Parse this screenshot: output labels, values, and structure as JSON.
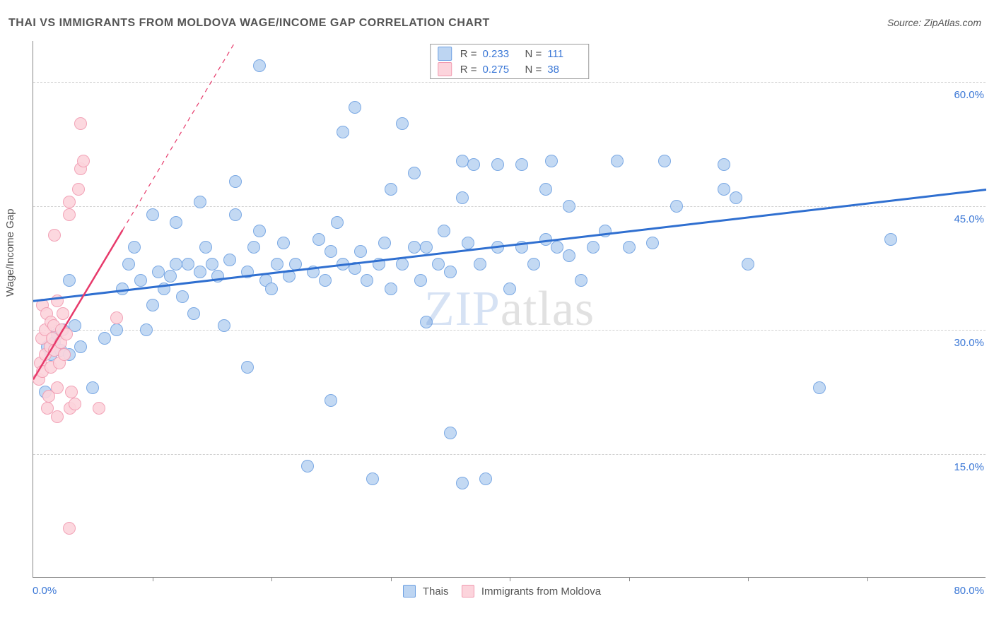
{
  "title": "THAI VS IMMIGRANTS FROM MOLDOVA WAGE/INCOME GAP CORRELATION CHART",
  "source_label": "Source:",
  "source_value": "ZipAtlas.com",
  "watermark": {
    "part1": "ZIP",
    "part2": "atlas"
  },
  "axes": {
    "ylabel": "Wage/Income Gap",
    "x_min_label": "0.0%",
    "x_max_label": "80.0%",
    "x_min": 0,
    "x_max": 80,
    "y_min": 0,
    "y_max": 65,
    "y_ticks": [
      15,
      30,
      45,
      60
    ],
    "y_tick_labels": [
      "15.0%",
      "30.0%",
      "45.0%",
      "60.0%"
    ],
    "x_ticks": [
      10,
      20,
      30,
      40,
      50,
      60,
      70
    ],
    "grid_color": "#d0d0d0",
    "tick_label_color": "#3a77d6"
  },
  "series": [
    {
      "name": "Thais",
      "marker": {
        "fill": "#bdd5f2",
        "stroke": "#6da0e2",
        "size": 18,
        "opacity": 0.9
      },
      "stats": {
        "R": "0.233",
        "N": "111"
      },
      "trend": {
        "x1": 0,
        "y1": 33.5,
        "x2": 80,
        "y2": 47,
        "color": "#2f6fd0",
        "width": 3,
        "dashed_beyond_x": null
      },
      "points": [
        [
          1.0,
          22.5
        ],
        [
          1.2,
          28.0
        ],
        [
          1.5,
          27.0
        ],
        [
          1.8,
          28.5
        ],
        [
          2.0,
          29.5
        ],
        [
          2.3,
          27.5
        ],
        [
          2.5,
          30.0
        ],
        [
          3.0,
          27.0
        ],
        [
          3.0,
          36.0
        ],
        [
          3.5,
          30.5
        ],
        [
          4.0,
          28.0
        ],
        [
          5.0,
          23.0
        ],
        [
          6.0,
          29.0
        ],
        [
          7.0,
          30.0
        ],
        [
          7.5,
          35.0
        ],
        [
          8.0,
          38.0
        ],
        [
          8.5,
          40.0
        ],
        [
          9.0,
          36.0
        ],
        [
          9.5,
          30.0
        ],
        [
          10.0,
          33.0
        ],
        [
          10.0,
          44.0
        ],
        [
          10.5,
          37.0
        ],
        [
          11.0,
          35.0
        ],
        [
          11.5,
          36.5
        ],
        [
          12.0,
          38.0
        ],
        [
          12.0,
          43.0
        ],
        [
          12.5,
          34.0
        ],
        [
          13.0,
          38.0
        ],
        [
          13.5,
          32.0
        ],
        [
          14.0,
          37.0
        ],
        [
          14.0,
          45.5
        ],
        [
          14.5,
          40.0
        ],
        [
          15.0,
          38.0
        ],
        [
          15.5,
          36.5
        ],
        [
          16.0,
          30.5
        ],
        [
          16.5,
          38.5
        ],
        [
          17.0,
          44.0
        ],
        [
          17.0,
          48.0
        ],
        [
          18.0,
          25.5
        ],
        [
          18.0,
          37.0
        ],
        [
          18.5,
          40.0
        ],
        [
          19.0,
          62.0
        ],
        [
          19.0,
          42.0
        ],
        [
          19.5,
          36.0
        ],
        [
          20.0,
          35.0
        ],
        [
          20.5,
          38.0
        ],
        [
          21.0,
          40.5
        ],
        [
          21.5,
          36.5
        ],
        [
          22.0,
          38.0
        ],
        [
          23.0,
          13.5
        ],
        [
          23.5,
          37.0
        ],
        [
          24.0,
          41.0
        ],
        [
          24.5,
          36.0
        ],
        [
          25.0,
          21.5
        ],
        [
          25.0,
          39.5
        ],
        [
          25.5,
          43.0
        ],
        [
          26.0,
          38.0
        ],
        [
          26.0,
          54.0
        ],
        [
          27.0,
          57.0
        ],
        [
          27.0,
          37.5
        ],
        [
          27.5,
          39.5
        ],
        [
          28.0,
          36.0
        ],
        [
          28.5,
          12.0
        ],
        [
          29.0,
          38.0
        ],
        [
          29.5,
          40.5
        ],
        [
          30.0,
          35.0
        ],
        [
          30.0,
          47.0
        ],
        [
          31.0,
          55.0
        ],
        [
          31.0,
          38.0
        ],
        [
          32.0,
          40.0
        ],
        [
          32.0,
          49.0
        ],
        [
          32.5,
          36.0
        ],
        [
          33.0,
          40.0
        ],
        [
          33.0,
          31.0
        ],
        [
          34.0,
          38.0
        ],
        [
          34.5,
          42.0
        ],
        [
          35.0,
          37.0
        ],
        [
          35.0,
          17.5
        ],
        [
          36.0,
          11.5
        ],
        [
          36.0,
          46.0
        ],
        [
          36.5,
          40.5
        ],
        [
          36.0,
          50.5
        ],
        [
          37.0,
          50.0
        ],
        [
          37.5,
          38.0
        ],
        [
          38.0,
          12.0
        ],
        [
          39.0,
          50.0
        ],
        [
          39.0,
          40.0
        ],
        [
          40.0,
          35.0
        ],
        [
          41.0,
          40.0
        ],
        [
          41.0,
          50.0
        ],
        [
          42.0,
          38.0
        ],
        [
          43.0,
          41.0
        ],
        [
          43.0,
          47.0
        ],
        [
          43.5,
          50.5
        ],
        [
          44.0,
          40.0
        ],
        [
          45.0,
          39.0
        ],
        [
          45.0,
          45.0
        ],
        [
          46.0,
          36.0
        ],
        [
          47.0,
          40.0
        ],
        [
          48.0,
          42.0
        ],
        [
          49.0,
          50.5
        ],
        [
          50.0,
          40.0
        ],
        [
          52.0,
          40.5
        ],
        [
          53.0,
          50.5
        ],
        [
          54.0,
          45.0
        ],
        [
          58.0,
          47.0
        ],
        [
          58.0,
          50.0
        ],
        [
          59.0,
          46.0
        ],
        [
          60.0,
          38.0
        ],
        [
          66.0,
          23.0
        ],
        [
          72.0,
          41.0
        ]
      ]
    },
    {
      "name": "Immigrants from Moldova",
      "marker": {
        "fill": "#fcd4dc",
        "stroke": "#f19ab0",
        "size": 18,
        "opacity": 0.9
      },
      "stats": {
        "R": "0.275",
        "N": "38"
      },
      "trend": {
        "x1": 0,
        "y1": 24,
        "x2": 17,
        "y2": 65,
        "color": "#e73a6b",
        "width": 2.5,
        "dashed_beyond_x": 7.5
      },
      "points": [
        [
          0.5,
          24.0
        ],
        [
          0.6,
          26.0
        ],
        [
          0.7,
          29.0
        ],
        [
          0.8,
          33.0
        ],
        [
          0.8,
          25.0
        ],
        [
          1.0,
          27.0
        ],
        [
          1.0,
          30.0
        ],
        [
          1.1,
          32.0
        ],
        [
          1.2,
          20.5
        ],
        [
          1.3,
          22.0
        ],
        [
          1.4,
          28.0
        ],
        [
          1.5,
          25.5
        ],
        [
          1.5,
          31.0
        ],
        [
          1.6,
          29.0
        ],
        [
          1.7,
          30.5
        ],
        [
          1.8,
          27.5
        ],
        [
          1.8,
          41.5
        ],
        [
          2.0,
          23.0
        ],
        [
          2.0,
          19.5
        ],
        [
          2.0,
          33.5
        ],
        [
          2.2,
          26.0
        ],
        [
          2.3,
          28.5
        ],
        [
          2.4,
          30.0
        ],
        [
          2.5,
          32.0
        ],
        [
          2.6,
          27.0
        ],
        [
          2.8,
          29.5
        ],
        [
          3.0,
          44.0
        ],
        [
          3.0,
          45.5
        ],
        [
          3.0,
          6.0
        ],
        [
          3.1,
          20.5
        ],
        [
          3.2,
          22.5
        ],
        [
          3.5,
          21.0
        ],
        [
          3.8,
          47.0
        ],
        [
          4.0,
          55.0
        ],
        [
          4.0,
          49.5
        ],
        [
          4.2,
          50.5
        ],
        [
          5.5,
          20.5
        ],
        [
          7.0,
          31.5
        ]
      ]
    }
  ],
  "legend_labels": {
    "R": "R =",
    "N": "N ="
  }
}
